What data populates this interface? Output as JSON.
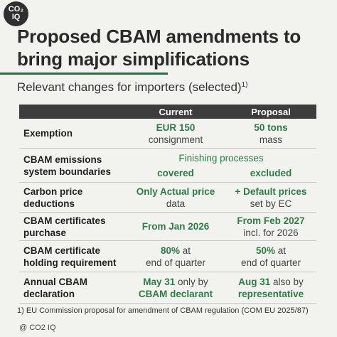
{
  "logo": {
    "line1": "CO₂",
    "line2": "IQ"
  },
  "title": "Proposed CBAM amendments to bring major simplifications",
  "subtitle": "Relevant changes for importers (selected)",
  "subtitle_sup": "1)",
  "table": {
    "headers": [
      "",
      "Current",
      "Proposal"
    ],
    "rows": [
      {
        "label": "Exemption",
        "current_a": "EUR 150",
        "current_b": "consignment",
        "proposal_a": "50 tons",
        "proposal_b": "mass"
      },
      {
        "label": "CBAM emissions system boundaries",
        "span": "Finishing processes",
        "current_b": "covered",
        "proposal_b": "excluded"
      },
      {
        "label": "Carbon price deductions",
        "current_a": "Only Actual price",
        "current_b": "data",
        "proposal_a": "+ Default prices",
        "proposal_b": "set by EC"
      },
      {
        "label": "CBAM certificates purchase",
        "current_a": "From Jan 2026",
        "proposal_a": "From Feb 2027",
        "proposal_b": "incl. for 2026"
      },
      {
        "label": "CBAM certificate holding requirement",
        "current_a": "80%",
        "current_a2": " at",
        "current_b": "end of quarter",
        "proposal_a": "50%",
        "proposal_a2": " at",
        "proposal_b": "end of quarter"
      },
      {
        "label": "Annual CBAM declaration",
        "current_a": "May 31",
        "current_a2": " only by",
        "current_b": "CBAM declarant",
        "proposal_a": "Aug 31",
        "proposal_a2": " also by",
        "proposal_b": "representative"
      }
    ]
  },
  "footnote": "1) EU Commission proposal for amendment of CBAM regulation (COM EU 2025/87)",
  "copyright": "@ CO2 IQ",
  "colors": {
    "accent": "#2e7d46",
    "header": "#3d3d3d",
    "background": "#f2f2ef"
  }
}
